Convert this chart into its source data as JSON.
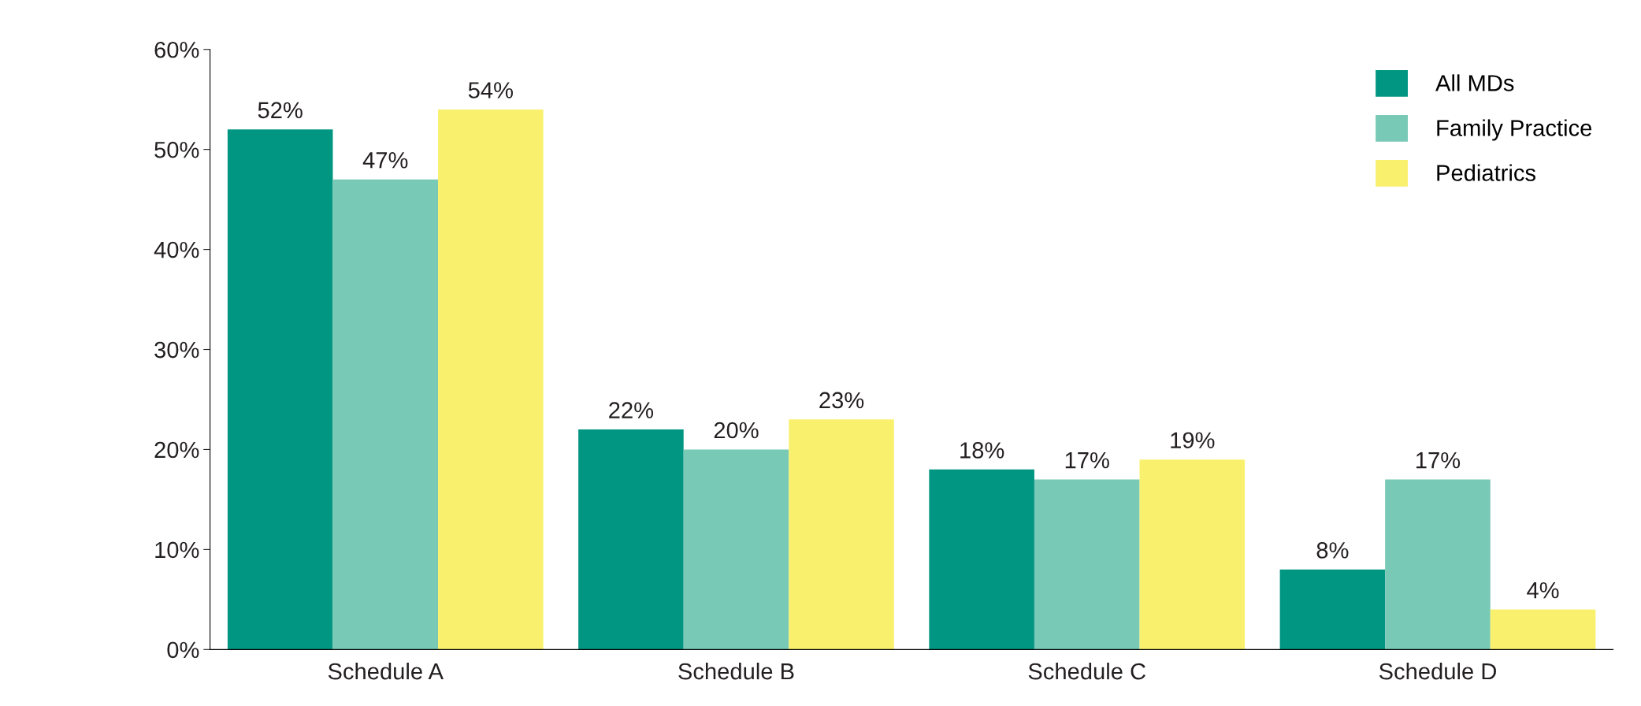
{
  "chart_data": {
    "type": "bar",
    "categories": [
      "Schedule A",
      "Schedule B",
      "Schedule C",
      "Schedule D"
    ],
    "series": [
      {
        "name": "All MDs",
        "color": "#009682",
        "values": [
          52,
          22,
          18,
          8
        ],
        "value_labels": [
          "52%",
          "22%",
          "18%",
          "8%"
        ]
      },
      {
        "name": "Family Practice",
        "color": "#78c9b6",
        "values": [
          47,
          20,
          17,
          17
        ],
        "value_labels": [
          "47%",
          "20%",
          "17%",
          "17%"
        ]
      },
      {
        "name": "Pediatrics",
        "color": "#f9f16e",
        "values": [
          54,
          23,
          19,
          4
        ],
        "value_labels": [
          "54%",
          "23%",
          "19%",
          "4%"
        ]
      }
    ],
    "ylim": [
      0,
      60
    ],
    "yticks": [
      {
        "value": 0,
        "label": "0%"
      },
      {
        "value": 10,
        "label": "10%"
      },
      {
        "value": 20,
        "label": "20%"
      },
      {
        "value": 30,
        "label": "30%"
      },
      {
        "value": 40,
        "label": "40%"
      },
      {
        "value": 50,
        "label": "50%"
      },
      {
        "value": 60,
        "label": "60%"
      }
    ],
    "grid": false,
    "legend": "top right"
  }
}
